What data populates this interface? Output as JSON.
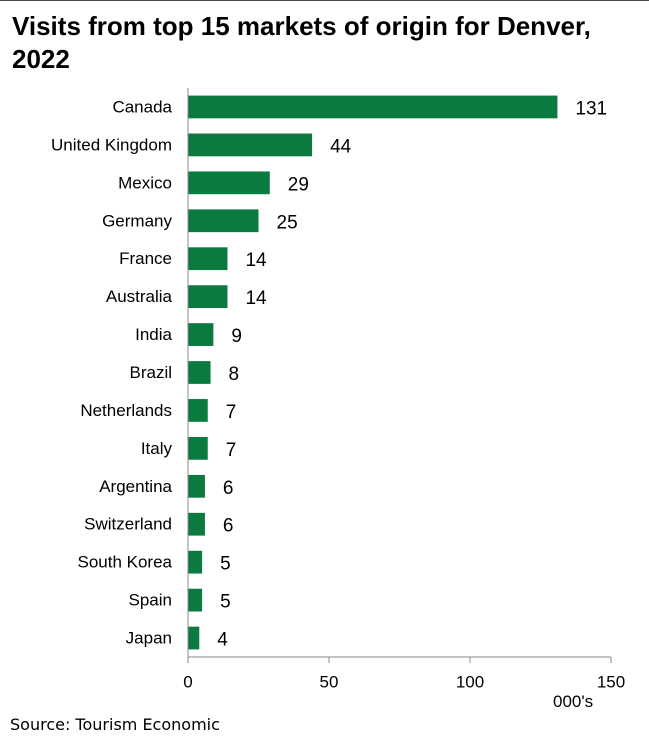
{
  "chart_data": {
    "type": "bar",
    "orientation": "horizontal",
    "title": "Visits from top 15 markets of origin for Denver, 2022",
    "categories": [
      "Canada",
      "United Kingdom",
      "Mexico",
      "Germany",
      "France",
      "Australia",
      "India",
      "Brazil",
      "Netherlands",
      "Italy",
      "Argentina",
      "Switzerland",
      "South Korea",
      "Spain",
      "Japan"
    ],
    "values": [
      131,
      44,
      29,
      25,
      14,
      14,
      9,
      8,
      7,
      7,
      6,
      6,
      5,
      5,
      4
    ],
    "data_labels": [
      "131",
      "44",
      "29",
      "25",
      "14",
      "14",
      "9",
      "8",
      "7",
      "7",
      "6",
      "6",
      "5",
      "5",
      "4"
    ],
    "xlim": [
      0,
      150
    ],
    "xticks": [
      0,
      50,
      100,
      150
    ],
    "xlabel": "000's",
    "ylabel": "",
    "grid": false,
    "bar_color": "#0a7a3f",
    "axis_color": "#888888"
  },
  "source": "Source: Tourism Economic"
}
